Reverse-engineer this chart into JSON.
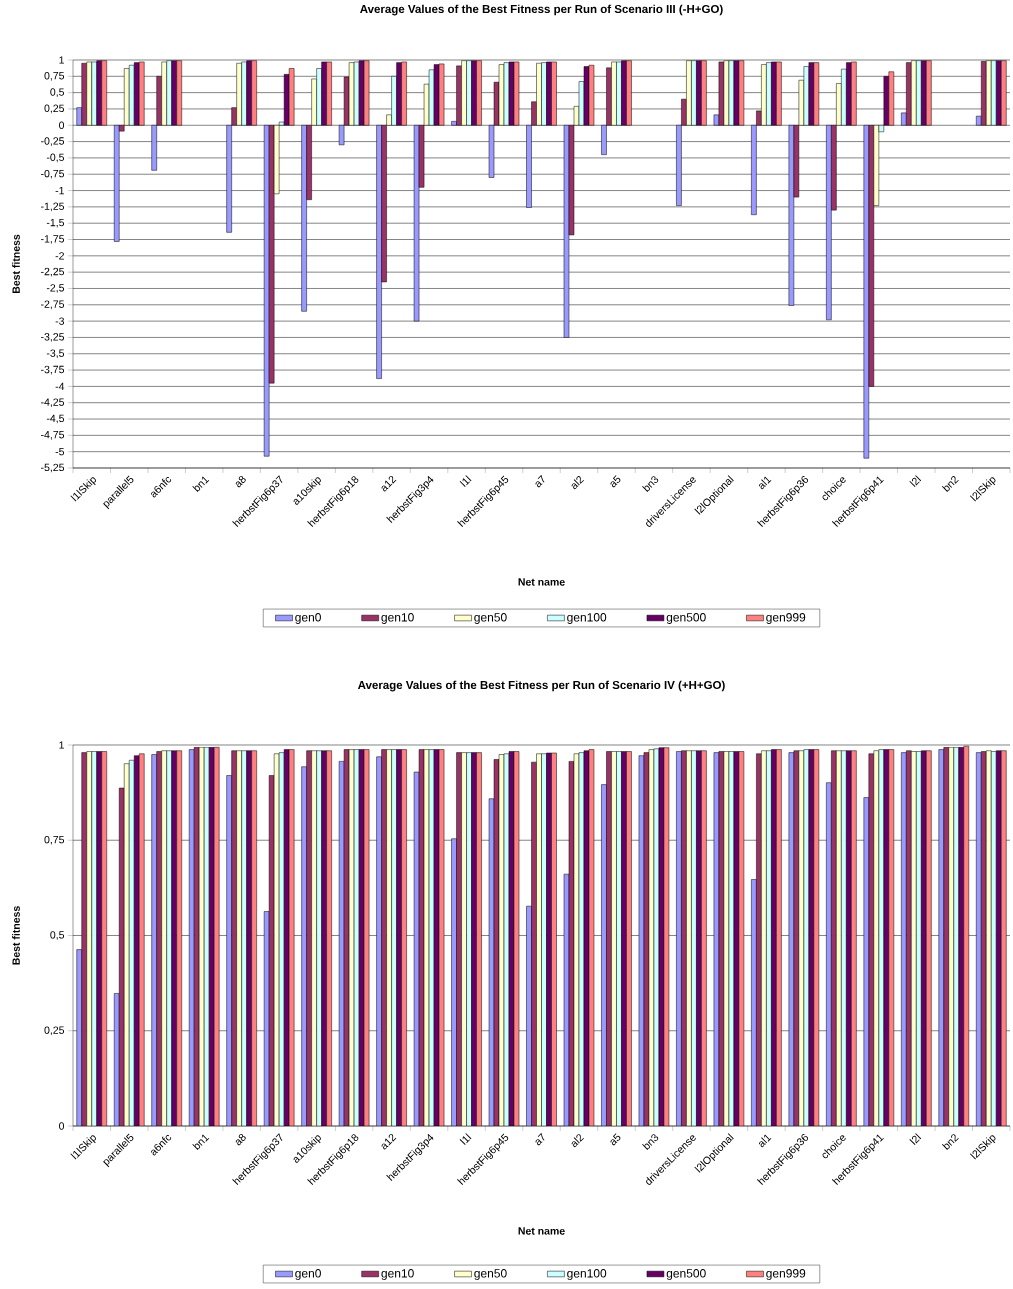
{
  "chart_data": [
    {
      "type": "bar",
      "title": "Average Values of the Best Fitness per Run of Scenario III (-H+GO)",
      "xlabel": "Net name",
      "ylabel": "Best fitness",
      "categories": [
        "l1lSkip",
        "parallel5",
        "a6nfc",
        "bn1",
        "a8",
        "herbstFig6p37",
        "a10skip",
        "herbstFig6p18",
        "a12",
        "herbstFig3p4",
        "l1l",
        "herbstFig6p45",
        "a7",
        "al2",
        "a5",
        "bn3",
        "driversLicense",
        "l2lOptional",
        "al1",
        "herbstFig6p36",
        "choice",
        "herbstFig6p41",
        "l2l",
        "bn2",
        "l2lSkip"
      ],
      "series": [
        {
          "name": "gen0",
          "color": "#9999ff",
          "values": [
            0.27,
            -1.78,
            -0.69,
            null,
            -1.64,
            -5.07,
            -2.85,
            -0.3,
            -3.88,
            -3.0,
            0.06,
            -0.8,
            -1.26,
            -3.25,
            -0.45,
            null,
            -1.23,
            0.16,
            -1.37,
            -2.76,
            -2.98,
            -5.1,
            0.19,
            null,
            0.14
          ]
        },
        {
          "name": "gen10",
          "color": "#993366",
          "values": [
            0.95,
            -0.09,
            0.75,
            null,
            0.27,
            -3.95,
            -1.14,
            0.74,
            -2.4,
            -0.95,
            0.91,
            0.66,
            0.36,
            -1.68,
            0.88,
            null,
            0.4,
            0.97,
            0.22,
            -1.1,
            -1.3,
            -4.0,
            0.96,
            null,
            0.98
          ]
        },
        {
          "name": "gen50",
          "color": "#ffffcc",
          "values": [
            0.97,
            0.87,
            0.97,
            null,
            0.95,
            -1.05,
            0.71,
            0.96,
            0.16,
            0.63,
            0.99,
            0.93,
            0.95,
            0.29,
            0.97,
            null,
            0.99,
            0.99,
            0.93,
            0.69,
            0.64,
            -1.23,
            0.99,
            null,
            0.99
          ]
        },
        {
          "name": "gen100",
          "color": "#ccffff",
          "values": [
            0.97,
            0.92,
            0.99,
            null,
            0.97,
            0.05,
            0.87,
            0.97,
            0.75,
            0.85,
            0.99,
            0.96,
            0.96,
            0.67,
            0.97,
            null,
            0.99,
            0.99,
            0.96,
            0.9,
            0.86,
            -0.1,
            0.99,
            null,
            0.99
          ]
        },
        {
          "name": "gen500",
          "color": "#660066",
          "values": [
            0.99,
            0.96,
            0.99,
            null,
            0.99,
            0.78,
            0.97,
            0.99,
            0.96,
            0.93,
            0.99,
            0.97,
            0.97,
            0.9,
            0.99,
            null,
            0.99,
            0.99,
            0.97,
            0.96,
            0.96,
            0.75,
            0.99,
            null,
            0.99
          ]
        },
        {
          "name": "gen999",
          "color": "#ff8080",
          "values": [
            0.99,
            0.97,
            0.99,
            null,
            0.99,
            0.87,
            0.97,
            0.99,
            0.97,
            0.94,
            0.99,
            0.97,
            0.97,
            0.92,
            0.99,
            null,
            0.99,
            0.99,
            0.97,
            0.96,
            0.97,
            0.82,
            0.99,
            null,
            0.99
          ]
        }
      ],
      "ylim": [
        -5.25,
        1
      ],
      "yticks": [
        {
          "value": -5.25,
          "label": "-5,25"
        },
        -5,
        {
          "value": -4.75,
          "label": "-4,75"
        },
        {
          "value": -4.5,
          "label": "-4,5"
        },
        {
          "value": -4.25,
          "label": "-4,25"
        },
        -4,
        {
          "value": -3.75,
          "label": "-3,75"
        },
        {
          "value": -3.5,
          "label": "-3,5"
        },
        {
          "value": -3.25,
          "label": "-3,25"
        },
        -3,
        {
          "value": -2.75,
          "label": "-2,75"
        },
        {
          "value": -2.5,
          "label": "-2,5"
        },
        {
          "value": -2.25,
          "label": "-2,25"
        },
        -2,
        {
          "value": -1.75,
          "label": "-1,75"
        },
        {
          "value": -1.5,
          "label": "-1,5"
        },
        {
          "value": -1.25,
          "label": "-1,25"
        },
        -1,
        {
          "value": -0.75,
          "label": "-0,75"
        },
        {
          "value": -0.5,
          "label": "-0,5"
        },
        {
          "value": -0.25,
          "label": "-0,25"
        },
        0,
        {
          "value": 0.25,
          "label": "0,25"
        },
        {
          "value": 0.5,
          "label": "0,5"
        },
        {
          "value": 0.75,
          "label": "0,75"
        },
        1
      ],
      "grid": "y",
      "legend": "bottom"
    },
    {
      "type": "bar",
      "title": "Average Values of the Best Fitness per Run of Scenario IV (+H+GO)",
      "xlabel": "Net name",
      "ylabel": "Best fitness",
      "categories": [
        "l1lSkip",
        "parallel5",
        "a6nfc",
        "bn1",
        "a8",
        "herbstFig6p37",
        "a10skip",
        "herbstFig6p18",
        "a12",
        "herbstFig3p4",
        "l1l",
        "herbstFig6p45",
        "a7",
        "al2",
        "a5",
        "bn3",
        "driversLicense",
        "l2lOptional",
        "al1",
        "herbstFig6p36",
        "choice",
        "herbstFig6p41",
        "l2l",
        "bn2",
        "l2lSkip"
      ],
      "series": [
        {
          "name": "gen0",
          "color": "#9999ff",
          "values": [
            0.463,
            0.348,
            0.975,
            0.988,
            0.92,
            0.563,
            0.943,
            0.957,
            0.969,
            0.929,
            0.754,
            0.859,
            0.577,
            0.661,
            0.896,
            0.972,
            0.983,
            0.98,
            0.647,
            0.98,
            0.901,
            0.862,
            0.98,
            0.988,
            0.98
          ]
        },
        {
          "name": "gen10",
          "color": "#993366",
          "values": [
            0.98,
            0.887,
            0.983,
            0.994,
            0.985,
            0.92,
            0.985,
            0.988,
            0.988,
            0.988,
            0.98,
            0.962,
            0.955,
            0.957,
            0.983,
            0.98,
            0.985,
            0.983,
            0.977,
            0.985,
            0.985,
            0.977,
            0.985,
            0.994,
            0.983
          ]
        },
        {
          "name": "gen50",
          "color": "#ffffcc",
          "values": [
            0.983,
            0.951,
            0.985,
            0.994,
            0.985,
            0.977,
            0.985,
            0.988,
            0.988,
            0.988,
            0.98,
            0.975,
            0.977,
            0.977,
            0.983,
            0.988,
            0.985,
            0.983,
            0.985,
            0.985,
            0.985,
            0.985,
            0.983,
            0.994,
            0.985
          ]
        },
        {
          "name": "gen100",
          "color": "#ccffff",
          "values": [
            0.983,
            0.96,
            0.985,
            0.994,
            0.985,
            0.98,
            0.985,
            0.988,
            0.988,
            0.988,
            0.98,
            0.977,
            0.977,
            0.98,
            0.983,
            0.99,
            0.985,
            0.983,
            0.985,
            0.988,
            0.985,
            0.988,
            0.983,
            0.994,
            0.983
          ]
        },
        {
          "name": "gen500",
          "color": "#660066",
          "values": [
            0.983,
            0.972,
            0.985,
            0.994,
            0.985,
            0.988,
            0.985,
            0.988,
            0.988,
            0.988,
            0.98,
            0.983,
            0.979,
            0.985,
            0.983,
            0.993,
            0.985,
            0.983,
            0.988,
            0.988,
            0.985,
            0.988,
            0.985,
            0.994,
            0.985
          ]
        },
        {
          "name": "gen999",
          "color": "#ff8080",
          "values": [
            0.983,
            0.977,
            0.985,
            0.994,
            0.985,
            0.988,
            0.985,
            0.988,
            0.988,
            0.988,
            0.98,
            0.983,
            0.979,
            0.988,
            0.983,
            0.993,
            0.985,
            0.983,
            0.988,
            0.988,
            0.985,
            0.988,
            0.985,
            0.997,
            0.985
          ]
        }
      ],
      "ylim": [
        0,
        1
      ],
      "yticks": [
        0,
        {
          "value": 0.25,
          "label": "0,25"
        },
        {
          "value": 0.5,
          "label": "0,5"
        },
        {
          "value": 0.75,
          "label": "0,75"
        },
        1
      ],
      "grid": "y",
      "legend": "bottom"
    }
  ]
}
